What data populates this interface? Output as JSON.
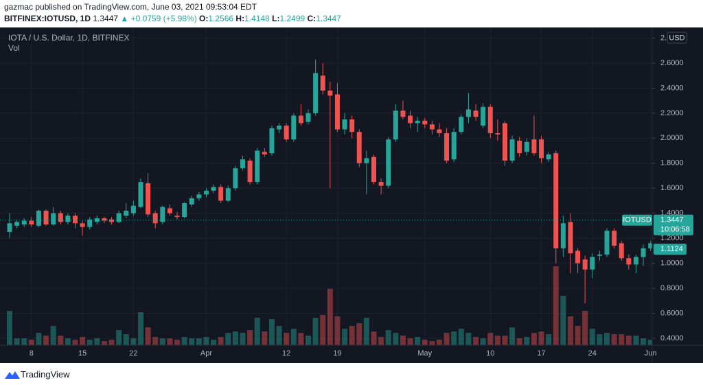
{
  "header": {
    "published": "gazmac published on TradingView.com, June 03, 2021 09:53:04 EDT",
    "symbol": "BITFINEX:IOTUSD, 1D",
    "price": "1.3447",
    "change": "▲ +0.0759 (+5.98%)",
    "ohlc": [
      {
        "label": "O:",
        "value": "1.2566"
      },
      {
        "label": "H:",
        "value": "1.4148"
      },
      {
        "label": "L:",
        "value": "1.2499"
      },
      {
        "label": "C:",
        "value": "1.3447"
      }
    ]
  },
  "chart_data": {
    "type": "candlestick",
    "title": "IOTA / U.S. Dollar, 1D, BITFINEX",
    "volume_label": "Vol",
    "currency": "USD",
    "up_color": "#26a69a",
    "down_color": "#ef5350",
    "grid": true,
    "ylim": [
      0.345,
      2.874
    ],
    "yticks": [
      {
        "value": 0.4,
        "label": "0.4000"
      },
      {
        "value": 0.6,
        "label": "0.6000"
      },
      {
        "value": 0.8,
        "label": "0.8000"
      },
      {
        "value": 1.0,
        "label": "1.0000"
      },
      {
        "value": 1.2,
        "label": "1.2000"
      },
      {
        "value": 1.4,
        "label": "1.4000"
      },
      {
        "value": 1.6,
        "label": "1.6000"
      },
      {
        "value": 1.8,
        "label": "1.8000"
      },
      {
        "value": 2.0,
        "label": "2.0000"
      },
      {
        "value": 2.2,
        "label": "2.2000"
      },
      {
        "value": 2.4,
        "label": "2.4000"
      },
      {
        "value": 2.6,
        "label": "2.6000"
      },
      {
        "value": 2.8,
        "label": "2."
      }
    ],
    "categories": [
      null,
      null,
      null,
      "8",
      null,
      null,
      null,
      null,
      null,
      null,
      "15",
      null,
      null,
      null,
      null,
      null,
      null,
      "22",
      null,
      null,
      null,
      null,
      null,
      null,
      null,
      null,
      null,
      "Apr",
      null,
      null,
      null,
      null,
      null,
      null,
      null,
      null,
      null,
      null,
      "12",
      null,
      null,
      null,
      null,
      null,
      null,
      "19",
      null,
      null,
      null,
      null,
      null,
      null,
      null,
      null,
      null,
      null,
      null,
      "May",
      null,
      null,
      null,
      null,
      null,
      null,
      null,
      null,
      "10",
      null,
      null,
      null,
      null,
      null,
      null,
      "17",
      null,
      null,
      null,
      null,
      null,
      null,
      "24",
      null,
      null,
      null,
      null,
      null,
      null,
      null,
      "Jun"
    ],
    "open": [
      1.25,
      1.3,
      1.31,
      1.34,
      1.3,
      1.42,
      1.31,
      1.4,
      1.33,
      1.38,
      1.32,
      1.29,
      1.33,
      1.36,
      1.35,
      1.33,
      1.38,
      1.4,
      1.45,
      1.64,
      1.4,
      1.33,
      1.44,
      1.38,
      1.37,
      1.47,
      1.52,
      1.55,
      1.58,
      1.61,
      1.5,
      1.6,
      1.76,
      1.82,
      1.65,
      1.89,
      1.88,
      2.07,
      2.1,
      1.99,
      2.18,
      2.13,
      2.2,
      2.5,
      2.38,
      2.35,
      2.07,
      2.15,
      2.05,
      1.8,
      1.85,
      1.65,
      1.62,
      1.99,
      2.22,
      2.18,
      2.12,
      2.14,
      2.11,
      2.07,
      2.04,
      1.83,
      2.05,
      2.17,
      2.22,
      2.1,
      2.25,
      2.04,
      2.12,
      1.82,
      1.98,
      1.89,
      1.99,
      1.99,
      1.83,
      1.88,
      1.12,
      1.33,
      1.1,
      1.03,
      0.95,
      1.06,
      1.07,
      1.26,
      1.16,
      1.04,
      0.99,
      1.05,
      1.12
    ],
    "high": [
      1.4,
      1.35,
      1.36,
      1.37,
      1.43,
      1.43,
      1.45,
      1.42,
      1.4,
      1.4,
      1.34,
      1.37,
      1.38,
      1.37,
      1.37,
      1.42,
      1.48,
      1.5,
      1.68,
      1.72,
      1.42,
      1.46,
      1.47,
      1.41,
      1.49,
      1.54,
      1.57,
      1.6,
      1.63,
      1.63,
      1.62,
      1.78,
      1.86,
      1.84,
      1.92,
      1.92,
      2.1,
      2.12,
      2.12,
      2.2,
      2.27,
      2.23,
      2.63,
      2.6,
      2.45,
      2.44,
      2.2,
      2.18,
      2.07,
      1.9,
      1.87,
      1.68,
      2.01,
      2.27,
      2.3,
      2.22,
      2.17,
      2.16,
      2.14,
      2.12,
      2.08,
      2.08,
      2.19,
      2.36,
      2.27,
      2.28,
      2.27,
      2.15,
      2.14,
      2.02,
      2.01,
      2.0,
      2.18,
      2.02,
      1.89,
      1.9,
      1.38,
      1.4,
      1.12,
      1.06,
      1.08,
      1.1,
      1.28,
      1.28,
      1.18,
      1.07,
      1.07,
      1.15,
      1.18
    ],
    "low": [
      1.2,
      1.28,
      1.29,
      1.29,
      1.29,
      1.3,
      1.3,
      1.31,
      1.31,
      1.28,
      1.22,
      1.27,
      1.31,
      1.32,
      1.31,
      1.32,
      1.36,
      1.38,
      1.44,
      1.37,
      1.28,
      1.31,
      1.38,
      1.35,
      1.36,
      1.45,
      1.5,
      1.53,
      1.56,
      1.48,
      1.49,
      1.58,
      1.74,
      1.63,
      1.63,
      1.85,
      1.86,
      2.04,
      1.97,
      1.97,
      2.1,
      2.11,
      2.18,
      2.35,
      1.6,
      2.05,
      2.03,
      2.0,
      1.77,
      1.55,
      1.63,
      1.55,
      1.6,
      1.97,
      2.15,
      2.08,
      2.05,
      2.08,
      2.03,
      2.01,
      1.8,
      1.81,
      2.03,
      2.12,
      2.14,
      2.08,
      2.0,
      1.98,
      1.78,
      1.8,
      1.85,
      1.86,
      1.86,
      1.8,
      1.81,
      1.0,
      1.05,
      0.92,
      0.92,
      0.68,
      0.88,
      1.02,
      1.05,
      1.12,
      1.02,
      0.95,
      0.92,
      0.98,
      1.1
    ],
    "close": [
      1.32,
      1.33,
      1.34,
      1.31,
      1.42,
      1.31,
      1.4,
      1.33,
      1.38,
      1.32,
      1.29,
      1.35,
      1.36,
      1.34,
      1.33,
      1.4,
      1.42,
      1.46,
      1.65,
      1.39,
      1.32,
      1.45,
      1.4,
      1.37,
      1.48,
      1.52,
      1.55,
      1.58,
      1.61,
      1.5,
      1.6,
      1.76,
      1.83,
      1.65,
      1.9,
      1.87,
      2.08,
      2.1,
      1.99,
      2.18,
      2.12,
      2.2,
      2.52,
      2.38,
      2.34,
      2.07,
      2.15,
      2.05,
      1.8,
      1.84,
      1.65,
      1.62,
      1.99,
      2.22,
      2.17,
      2.12,
      2.14,
      2.11,
      2.07,
      2.04,
      1.82,
      2.05,
      2.17,
      2.23,
      2.17,
      2.25,
      2.04,
      2.03,
      1.82,
      1.99,
      1.88,
      1.97,
      1.88,
      1.84,
      1.87,
      1.12,
      1.32,
      1.08,
      1.0,
      0.95,
      1.05,
      1.07,
      1.26,
      1.14,
      1.04,
      0.99,
      1.05,
      1.12,
      1.16
    ],
    "volume": [
      50,
      10,
      10,
      8,
      18,
      14,
      28,
      14,
      10,
      8,
      12,
      8,
      10,
      6,
      8,
      22,
      16,
      10,
      48,
      26,
      12,
      10,
      10,
      8,
      12,
      10,
      10,
      12,
      8,
      12,
      18,
      20,
      18,
      22,
      40,
      20,
      38,
      28,
      18,
      24,
      18,
      14,
      40,
      44,
      82,
      42,
      24,
      28,
      32,
      40,
      20,
      12,
      22,
      18,
      14,
      10,
      12,
      8,
      6,
      8,
      18,
      20,
      24,
      18,
      12,
      10,
      18,
      14,
      14,
      26,
      10,
      12,
      18,
      20,
      16,
      115,
      72,
      42,
      28,
      50,
      24,
      16,
      18,
      16,
      16,
      14,
      14,
      10,
      8
    ],
    "last_price": {
      "name": "IOTUSD",
      "value": 1.3447,
      "countdown": "10:06:58"
    },
    "indicator_price": {
      "value": 1.1124
    }
  },
  "footer": {
    "brand": "TradingView"
  }
}
